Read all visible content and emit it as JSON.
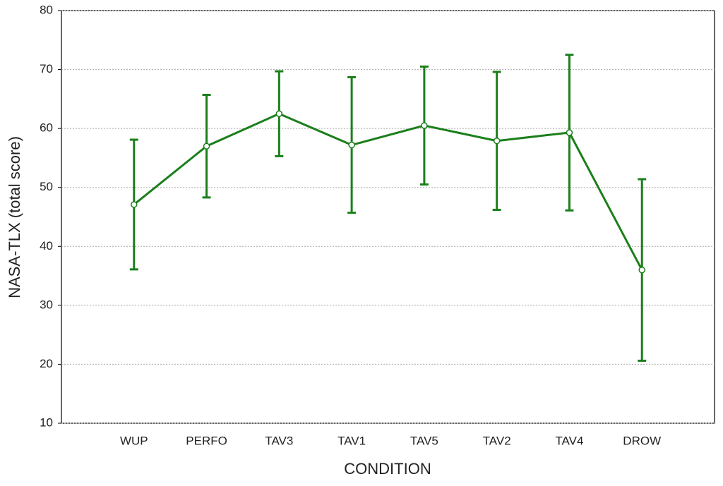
{
  "chart_data": {
    "type": "line",
    "x_label": "CONDITION",
    "y_label": "NASA-TLX (total score)",
    "categories": [
      "WUP",
      "PERFO",
      "TAV3",
      "TAV1",
      "TAV5",
      "TAV2",
      "TAV4",
      "DROW"
    ],
    "series": [
      {
        "color": "#1b7f1b",
        "values": [
          47.1,
          57.0,
          62.5,
          57.2,
          60.5,
          57.9,
          59.3,
          36.0
        ],
        "errors": [
          11.0,
          8.7,
          7.2,
          11.5,
          10.0,
          11.7,
          13.2,
          15.4
        ]
      }
    ],
    "ylim": [
      10,
      80
    ],
    "yticks": [
      10,
      20,
      30,
      40,
      50,
      60,
      70,
      80
    ],
    "grid": true
  }
}
